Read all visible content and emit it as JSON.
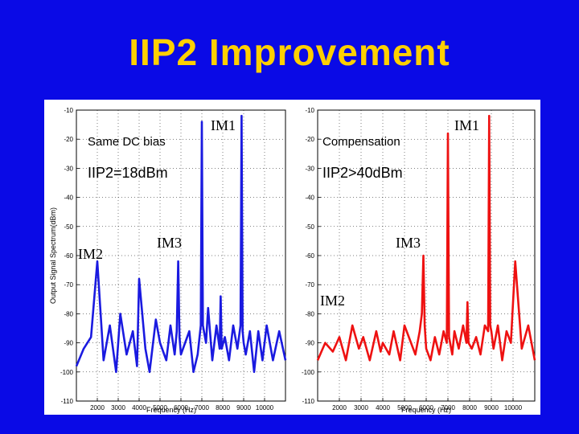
{
  "slide": {
    "title": "IIP2 Improvement"
  },
  "colors": {
    "background": "#0a0ae6",
    "title": "#ffd000",
    "left_trace": "#1a1ae0",
    "right_trace": "#ee1111"
  },
  "chart_data": [
    {
      "type": "line",
      "xlabel": "Frequency (Hz)",
      "ylabel": "Output Signal Spectrum(dBm)",
      "xlim": [
        1000,
        11000
      ],
      "ylim": [
        -110,
        -10
      ],
      "xticks": [
        2000,
        3000,
        4000,
        5000,
        6000,
        7000,
        8000,
        9000,
        10000
      ],
      "yticks": [
        -10,
        -20,
        -30,
        -40,
        -50,
        -60,
        -70,
        -80,
        -90,
        -100,
        -110
      ],
      "grid": true,
      "series": [
        {
          "color": "#1a1ae0",
          "x": [
            1000,
            1350,
            1700,
            2000,
            2300,
            2600,
            2900,
            3100,
            3400,
            3700,
            3900,
            4000,
            4300,
            4500,
            4800,
            5000,
            5300,
            5500,
            5700,
            5800,
            5870,
            5930,
            6000,
            6200,
            6400,
            6600,
            6800,
            6950,
            7000,
            7050,
            7200,
            7300,
            7500,
            7700,
            7850,
            7900,
            7950,
            8100,
            8300,
            8500,
            8700,
            8850,
            8900,
            8950,
            9000,
            9100,
            9300,
            9500,
            9700,
            9900,
            10100,
            10400,
            10700,
            11000
          ],
          "values": [
            -98,
            -92,
            -88,
            -62,
            -96,
            -84,
            -100,
            -80,
            -94,
            -86,
            -98,
            -68,
            -92,
            -100,
            -82,
            -90,
            -96,
            -84,
            -94,
            -86,
            -62,
            -88,
            -94,
            -90,
            -86,
            -100,
            -94,
            -84,
            -14,
            -84,
            -90,
            -78,
            -96,
            -84,
            -92,
            -74,
            -92,
            -88,
            -96,
            -84,
            -92,
            -84,
            -12,
            -86,
            -90,
            -94,
            -86,
            -100,
            -86,
            -96,
            -84,
            -96,
            -86,
            -96
          ]
        },
        {
          "color": "#ee1111",
          "x": [
            1000,
            1350,
            1700,
            2000,
            2300,
            2600,
            2900,
            3100,
            3400,
            3700,
            3900,
            4000,
            4300,
            4500,
            4800,
            5000,
            5300,
            5500,
            5700,
            5800,
            5870,
            5930,
            6000,
            6200,
            6400,
            6600,
            6800,
            6950,
            7000,
            7050,
            7200,
            7300,
            7500,
            7700,
            7850,
            7900,
            7950,
            8100,
            8300,
            8500,
            8700,
            8850,
            8900,
            8950,
            9000,
            9100,
            9300,
            9500,
            9700,
            9900,
            10100,
            10400,
            10700,
            11000
          ],
          "values": [
            -96,
            -90,
            -93,
            -88,
            -96,
            -84,
            -92,
            -88,
            -96,
            -86,
            -93,
            -90,
            -94,
            -86,
            -96,
            -84,
            -90,
            -94,
            -86,
            -80,
            -60,
            -84,
            -92,
            -96,
            -88,
            -94,
            -86,
            -90,
            -18,
            -88,
            -94,
            -86,
            -92,
            -84,
            -90,
            -76,
            -90,
            -92,
            -88,
            -94,
            -84,
            -86,
            -12,
            -84,
            -86,
            -92,
            -84,
            -96,
            -86,
            -90,
            -62,
            -92,
            -84,
            -96
          ]
        }
      ]
    }
  ],
  "left_panel": {
    "condition": "Same DC bias",
    "result": "IIP2=18dBm",
    "im1": "IM1",
    "im2": "IM2",
    "im3": "IM3"
  },
  "right_panel": {
    "condition": "Compensation",
    "result": "IIP2>40dBm",
    "im1": "IM1",
    "im2": "IM2",
    "im3": "IM3"
  }
}
